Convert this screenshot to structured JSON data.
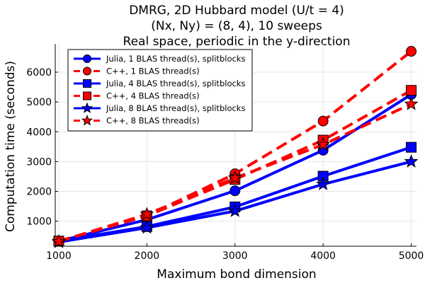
{
  "chart_data": {
    "type": "line",
    "title_lines": [
      "DMRG, 2D Hubbard model (U/t = 4)",
      "(Nx, Ny) = (8, 4), 10 sweeps",
      "Real space, periodic in the y-direction"
    ],
    "xlabel": "Maximum bond dimension",
    "ylabel": "Computation time (seconds)",
    "xlim": [
      960,
      5060
    ],
    "ylim": [
      160,
      6950
    ],
    "xticks": [
      1000,
      2000,
      3000,
      4000,
      5000
    ],
    "yticks": [
      1000,
      2000,
      3000,
      4000,
      5000,
      6000
    ],
    "grid": true,
    "legend_position": "top-left",
    "x": [
      1000,
      2000,
      3000,
      4000,
      5000
    ],
    "series": [
      {
        "name": "Julia, 1 BLAS thread(s), splitblocks",
        "values": [
          330,
          1050,
          2020,
          3380,
          5250
        ],
        "color": "#0000ff",
        "style": "solid",
        "marker": "circle"
      },
      {
        "name": "C++, 1 BLAS thread(s)",
        "values": [
          330,
          1180,
          2590,
          4360,
          6700
        ],
        "color": "#ff0000",
        "style": "dashed",
        "marker": "circle"
      },
      {
        "name": "Julia, 4 BLAS thread(s), splitblocks",
        "values": [
          330,
          820,
          1480,
          2510,
          3480
        ],
        "color": "#0000ff",
        "style": "solid",
        "marker": "square"
      },
      {
        "name": "C++, 4 BLAS thread(s)",
        "values": [
          330,
          1180,
          2400,
          3720,
          5390
        ],
        "color": "#ff0000",
        "style": "dashed",
        "marker": "square"
      },
      {
        "name": "Julia, 8 BLAS thread(s), splitblocks",
        "values": [
          300,
          780,
          1340,
          2240,
          3000
        ],
        "color": "#0000ff",
        "style": "solid",
        "marker": "star"
      },
      {
        "name": "C++, 8 BLAS thread(s)",
        "values": [
          320,
          1230,
          2450,
          3570,
          4930
        ],
        "color": "#ff0000",
        "style": "dashed",
        "marker": "star"
      }
    ]
  }
}
